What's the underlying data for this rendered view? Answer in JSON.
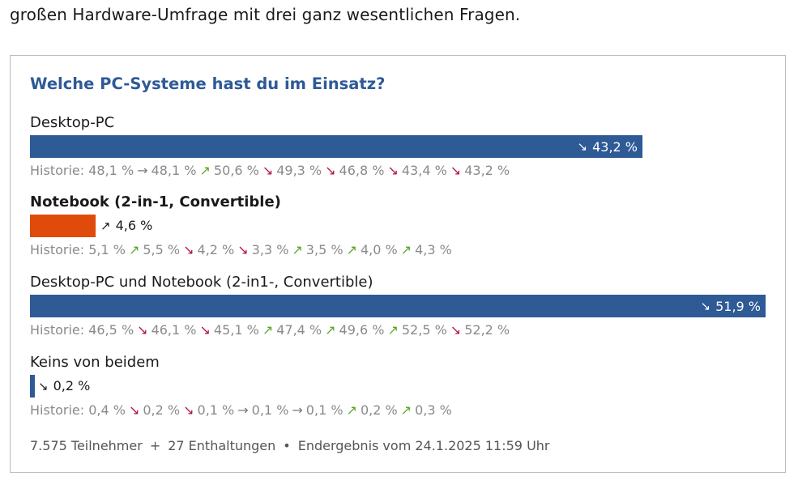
{
  "intro_text": "großen Hardware-Umfrage mit drei ganz wesentlichen Fragen.",
  "poll": {
    "question": "Welche PC-Systeme hast du im Einsatz?",
    "history_label": "Historie:",
    "options": [
      {
        "label": "Desktop-PC",
        "percent": "43,2 %",
        "value": 43.2,
        "trend": "down",
        "bar_color": "#2e5a96",
        "highlighted": false,
        "history": [
          {
            "value": "48,1 %",
            "trend": "none"
          },
          {
            "value": "48,1 %",
            "trend": "flat"
          },
          {
            "value": "50,6 %",
            "trend": "up"
          },
          {
            "value": "49,3 %",
            "trend": "down"
          },
          {
            "value": "46,8 %",
            "trend": "down"
          },
          {
            "value": "43,4 %",
            "trend": "down"
          },
          {
            "value": "43,2 %",
            "trend": "down"
          }
        ]
      },
      {
        "label": "Notebook (2-in-1, Convertible)",
        "percent": "4,6 %",
        "value": 4.6,
        "trend": "up",
        "bar_color": "#e04a0a",
        "highlighted": true,
        "history": [
          {
            "value": "5,1 %",
            "trend": "none"
          },
          {
            "value": "5,5 %",
            "trend": "up"
          },
          {
            "value": "4,2 %",
            "trend": "down"
          },
          {
            "value": "3,3 %",
            "trend": "down"
          },
          {
            "value": "3,5 %",
            "trend": "up"
          },
          {
            "value": "4,0 %",
            "trend": "up"
          },
          {
            "value": "4,3 %",
            "trend": "up"
          }
        ]
      },
      {
        "label": "Desktop-PC und Notebook (2-in1-, Convertible)",
        "percent": "51,9 %",
        "value": 51.9,
        "trend": "down",
        "bar_color": "#2e5a96",
        "highlighted": false,
        "history": [
          {
            "value": "46,5 %",
            "trend": "none"
          },
          {
            "value": "46,1 %",
            "trend": "down"
          },
          {
            "value": "45,1 %",
            "trend": "down"
          },
          {
            "value": "47,4 %",
            "trend": "up"
          },
          {
            "value": "49,6 %",
            "trend": "up"
          },
          {
            "value": "52,5 %",
            "trend": "up"
          },
          {
            "value": "52,2 %",
            "trend": "down"
          }
        ]
      },
      {
        "label": "Keins von beidem",
        "percent": "0,2 %",
        "value": 0.2,
        "trend": "down",
        "bar_color": "#2e5a96",
        "highlighted": false,
        "history": [
          {
            "value": "0,4 %",
            "trend": "none"
          },
          {
            "value": "0,2 %",
            "trend": "down"
          },
          {
            "value": "0,1 %",
            "trend": "down"
          },
          {
            "value": "0,1 %",
            "trend": "flat"
          },
          {
            "value": "0,1 %",
            "trend": "flat"
          },
          {
            "value": "0,2 %",
            "trend": "up"
          },
          {
            "value": "0,3 %",
            "trend": "up"
          }
        ]
      }
    ],
    "footer": {
      "participants": "7.575 Teilnehmer",
      "plus": "+",
      "abstentions": "27 Enthaltungen",
      "bullet": "•",
      "result": "Endergebnis vom 24.1.2025 11:59 Uhr"
    }
  }
}
